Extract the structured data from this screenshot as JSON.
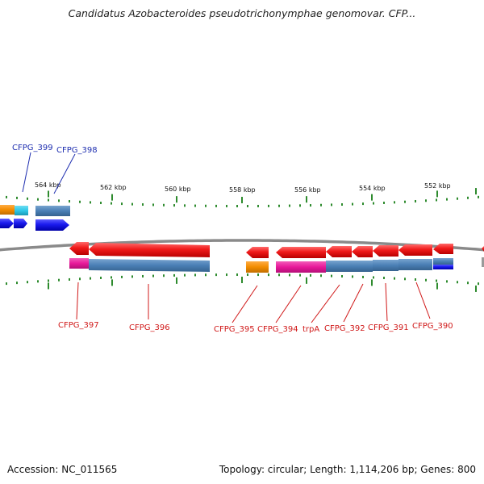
{
  "header": {
    "title": "Candidatus Azobacteroides pseudotrichonymphae genomovar. CFP..."
  },
  "footer": {
    "accession": "Accession: NC_011565",
    "topology": "Topology: circular; Length: 1,114,206 bp; Genes: 800"
  },
  "colors": {
    "backbone": "#8a8a8a",
    "tick": "#2e8b2e",
    "forward_gene": "#1a1aee",
    "reverse_gene": "#ee1111",
    "cog_blue": "#4a7fb5",
    "cog_pink": "#e8199a",
    "cog_orange": "#f28c00",
    "cog_cyan": "#2ec8e8",
    "forward_label": "#1f2fb0",
    "reverse_label": "#d01818"
  },
  "scale": {
    "unit": "kbp",
    "ticks": [
      {
        "kbp": 564,
        "label": "564 kbp"
      },
      {
        "kbp": 562,
        "label": "562 kbp"
      },
      {
        "kbp": 560,
        "label": "560 kbp"
      },
      {
        "kbp": 558,
        "label": "558 kbp"
      },
      {
        "kbp": 556,
        "label": "556 kbp"
      },
      {
        "kbp": 554,
        "label": "554 kbp"
      },
      {
        "kbp": 552,
        "label": "552 kbp"
      }
    ]
  },
  "genes": {
    "forward": [
      {
        "label": "CFPG_399",
        "cog": "cyan"
      },
      {
        "label": "CFPG_398",
        "cog": "blue"
      }
    ],
    "reverse": [
      {
        "label": "CFPG_397",
        "cog": "pink"
      },
      {
        "label": "CFPG_396",
        "cog": "blue"
      },
      {
        "label": "CFPG_395",
        "cog": "orange"
      },
      {
        "label": "CFPG_394",
        "cog": "pink"
      },
      {
        "label": "trpA",
        "cog": "blue"
      },
      {
        "label": "CFPG_392",
        "cog": "blue"
      },
      {
        "label": "CFPG_391",
        "cog": "blue"
      },
      {
        "label": "CFPG_390",
        "cog": "blue"
      }
    ]
  }
}
